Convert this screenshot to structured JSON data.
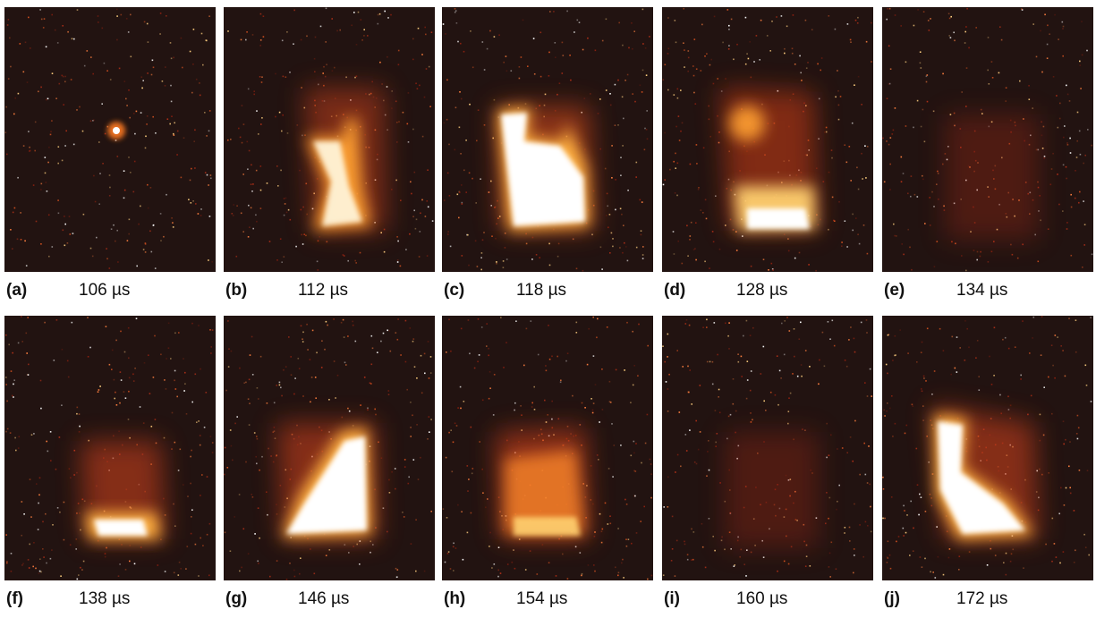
{
  "panels": [
    {
      "label": "(a)",
      "time": "106 µs"
    },
    {
      "label": "(b)",
      "time": "112 µs"
    },
    {
      "label": "(c)",
      "time": "118 µs"
    },
    {
      "label": "(d)",
      "time": "128 µs"
    },
    {
      "label": "(e)",
      "time": "134 µs"
    },
    {
      "label": "(f)",
      "time": "138 µs"
    },
    {
      "label": "(g)",
      "time": "146 µs"
    },
    {
      "label": "(h)",
      "time": "154 µs"
    },
    {
      "label": "(i)",
      "time": "160 µs"
    },
    {
      "label": "(j)",
      "time": "172 µs"
    }
  ]
}
